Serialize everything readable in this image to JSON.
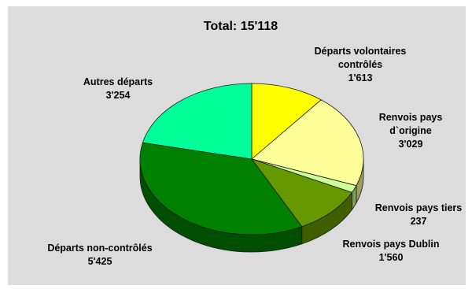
{
  "chart_data": {
    "type": "pie",
    "title": "Total: 15'118",
    "start_angle_deg": 0,
    "direction": "clockwise",
    "three_d": true,
    "background": "#dcdcdc",
    "slices": [
      {
        "label_lines": [
          "Départs volontaires",
          "contrôlés"
        ],
        "value_text": "1'613",
        "value": 1613,
        "color": "#ffff00"
      },
      {
        "label_lines": [
          "Renvois pays",
          "d`origine"
        ],
        "value_text": "3'029",
        "value": 3029,
        "color": "#ffff99"
      },
      {
        "label_lines": [
          "Renvois pays tiers"
        ],
        "value_text": "237",
        "value": 237,
        "color": "#ccff99"
      },
      {
        "label_lines": [
          "Renvois pays Dublin"
        ],
        "value_text": "1'560",
        "value": 1560,
        "color": "#669900"
      },
      {
        "label_lines": [
          "Départs non-contrôlés"
        ],
        "value_text": "5'425",
        "value": 5425,
        "color": "#008000"
      },
      {
        "label_lines": [
          "Autres départs"
        ],
        "value_text": "3'254",
        "value": 3254,
        "color": "#00ff99"
      }
    ]
  }
}
